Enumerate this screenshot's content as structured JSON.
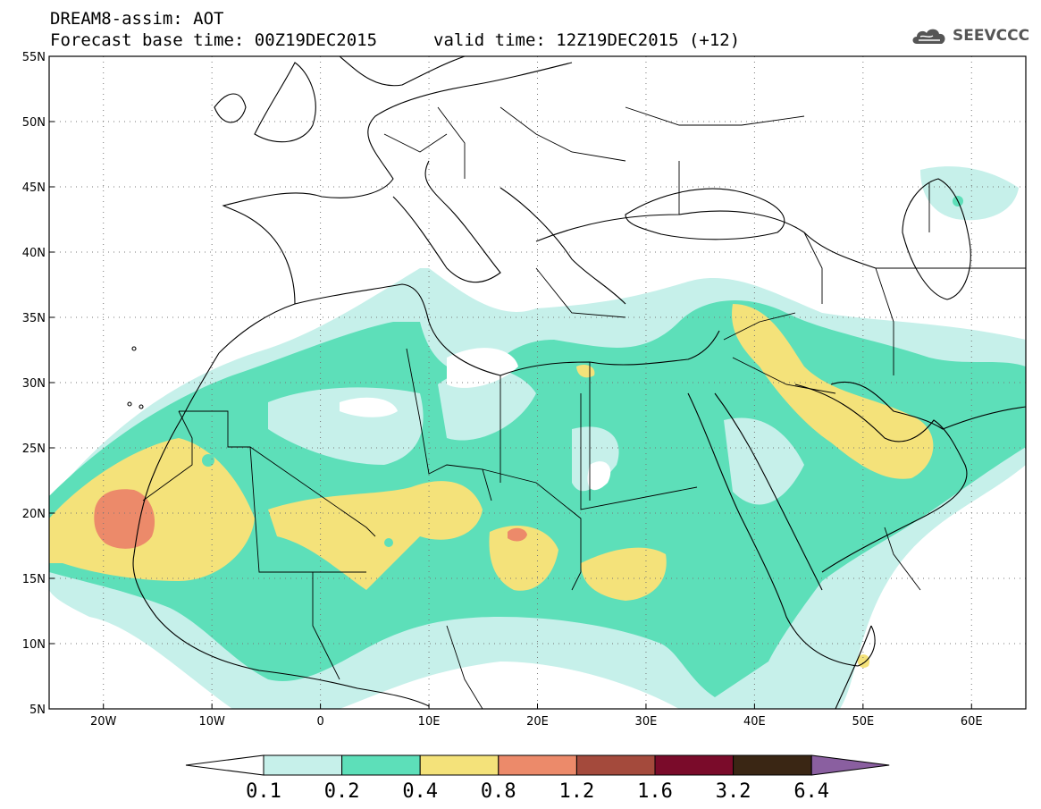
{
  "title": {
    "line1": "DREAM8-assim: AOT",
    "line2": "Forecast base time: 00Z19DEC2015",
    "line2b": "valid time: 12Z19DEC2015 (+12)"
  },
  "logo": {
    "text": "SEEVCCC",
    "icon": "cloud-logo-icon"
  },
  "map": {
    "lon_range": [
      -25,
      65
    ],
    "lat_range": [
      5,
      55
    ],
    "lat_ticks": [
      "55N",
      "50N",
      "45N",
      "40N",
      "35N",
      "30N",
      "25N",
      "20N",
      "15N",
      "10N",
      "5N"
    ],
    "lon_ticks": [
      "20W",
      "10W",
      "0",
      "10E",
      "20E",
      "30E",
      "40E",
      "50E",
      "60E"
    ],
    "grid": "dotted"
  },
  "colorbar": {
    "labels": [
      "0.1",
      "0.2",
      "0.4",
      "0.8",
      "1.2",
      "1.6",
      "3.2",
      "6.4"
    ],
    "colors": [
      "#ffffff",
      "#c6f0ea",
      "#5ddfb9",
      "#f4e27a",
      "#ec8a6a",
      "#a44a3c",
      "#7a0b2a",
      "#3a2614",
      "#8a5fa0"
    ]
  }
}
